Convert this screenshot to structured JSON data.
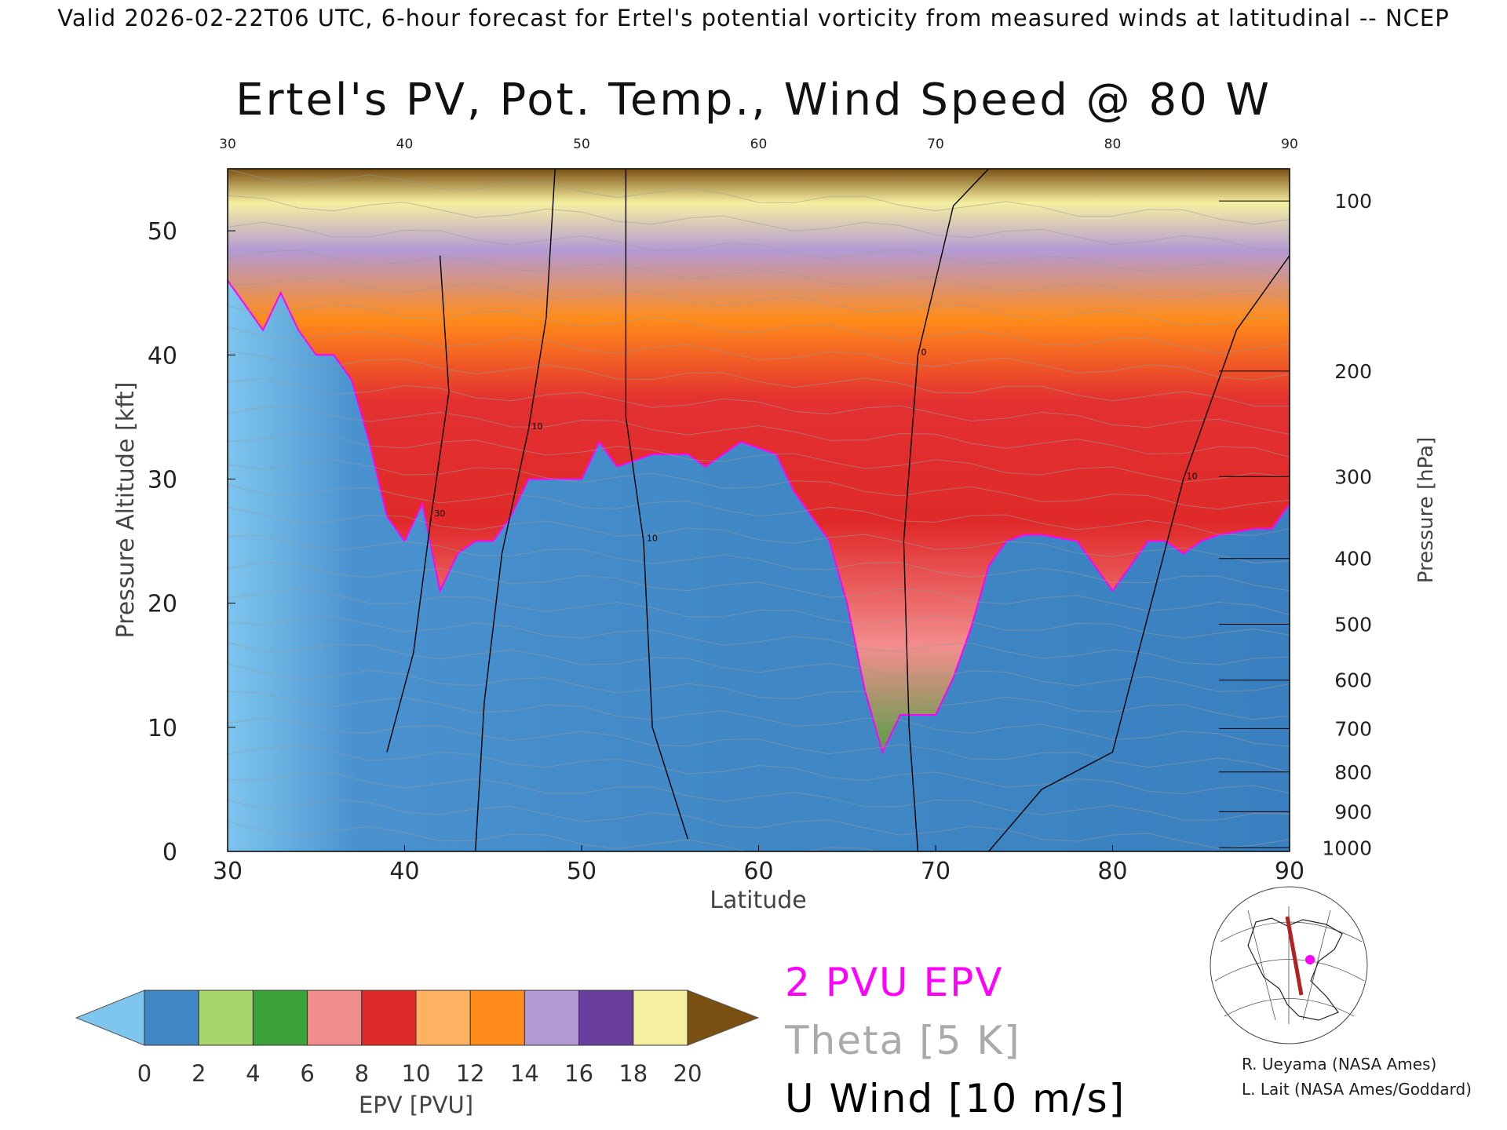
{
  "header": "Valid 2026-02-22T06 UTC, 6-hour forecast for Ertel's potential vorticity from measured winds at latitudinal -- NCEP",
  "chart_data": {
    "type": "heatmap",
    "title": "Ertel's PV, Pot. Temp., Wind Speed @ 80 W",
    "xlabel": "Latitude",
    "ylabel": "Pressure Altitude [kft]",
    "y2label": "Pressure [hPa]",
    "xlim": [
      30,
      90
    ],
    "ylim": [
      0,
      55
    ],
    "x_ticks": [
      30,
      40,
      50,
      60,
      70,
      80,
      90
    ],
    "y_ticks": [
      0,
      10,
      20,
      30,
      40,
      50
    ],
    "y2_ticks": [
      {
        "label": "100",
        "kft": 52.4
      },
      {
        "label": "200",
        "kft": 38.7
      },
      {
        "label": "300",
        "kft": 30.2
      },
      {
        "label": "400",
        "kft": 23.6
      },
      {
        "label": "500",
        "kft": 18.3
      },
      {
        "label": "600",
        "kft": 13.8
      },
      {
        "label": "700",
        "kft": 9.9
      },
      {
        "label": "800",
        "kft": 6.4
      },
      {
        "label": "900",
        "kft": 3.2
      },
      {
        "label": "1000",
        "kft": 0.3
      }
    ],
    "pv_2pvu_kft": [
      [
        30,
        46
      ],
      [
        31,
        44
      ],
      [
        32,
        42
      ],
      [
        33,
        45
      ],
      [
        34,
        42
      ],
      [
        35,
        40
      ],
      [
        36,
        40
      ],
      [
        37,
        38
      ],
      [
        38,
        33
      ],
      [
        39,
        27
      ],
      [
        40,
        25
      ],
      [
        41,
        28
      ],
      [
        42,
        21
      ],
      [
        43,
        24
      ],
      [
        44,
        25
      ],
      [
        45,
        25
      ],
      [
        46,
        27
      ],
      [
        47,
        30
      ],
      [
        48,
        30
      ],
      [
        50,
        30
      ],
      [
        51,
        33
      ],
      [
        52,
        31
      ],
      [
        54,
        32
      ],
      [
        56,
        32
      ],
      [
        57,
        31
      ],
      [
        58,
        32
      ],
      [
        59,
        33
      ],
      [
        61,
        32
      ],
      [
        62,
        29
      ],
      [
        63,
        27
      ],
      [
        64,
        25
      ],
      [
        65,
        20
      ],
      [
        66,
        13
      ],
      [
        67,
        8
      ],
      [
        68,
        11
      ],
      [
        69,
        11
      ],
      [
        70,
        11
      ],
      [
        71,
        14
      ],
      [
        72,
        18
      ],
      [
        73,
        23
      ],
      [
        74,
        25
      ],
      [
        75,
        25.5
      ],
      [
        76,
        25.5
      ],
      [
        78,
        25
      ],
      [
        79,
        23
      ],
      [
        80,
        21
      ],
      [
        81,
        23
      ],
      [
        82,
        25
      ],
      [
        83,
        25
      ],
      [
        84,
        24
      ],
      [
        85,
        25
      ],
      [
        86,
        25.5
      ],
      [
        88,
        26
      ],
      [
        89,
        26
      ],
      [
        90,
        28
      ]
    ],
    "wind_contours": [
      {
        "value": 10,
        "points": [
          [
            44,
            0
          ],
          [
            44.5,
            12
          ],
          [
            45.5,
            24
          ],
          [
            47,
            34
          ],
          [
            48,
            43
          ],
          [
            48.5,
            55
          ]
        ]
      },
      {
        "value": 10,
        "points": [
          [
            56,
            1
          ],
          [
            54,
            10
          ],
          [
            53.5,
            25
          ],
          [
            52.5,
            35
          ],
          [
            52.5,
            55
          ]
        ]
      },
      {
        "value": 0,
        "points": [
          [
            69,
            0
          ],
          [
            68.5,
            10
          ],
          [
            68.2,
            25
          ],
          [
            69,
            40
          ],
          [
            71,
            52
          ],
          [
            73,
            55
          ]
        ]
      },
      {
        "value": 30,
        "points": [
          [
            39,
            8
          ],
          [
            40.5,
            16
          ],
          [
            41.5,
            27
          ],
          [
            42.5,
            37
          ],
          [
            42,
            48
          ]
        ]
      },
      {
        "value": 10,
        "points": [
          [
            73,
            0
          ],
          [
            76,
            5
          ],
          [
            80,
            8
          ],
          [
            84,
            30
          ],
          [
            87,
            42
          ],
          [
            90,
            48
          ]
        ]
      }
    ],
    "epv_colorbar": {
      "label": "EPV [PVU]",
      "ticks": [
        0,
        2,
        4,
        6,
        8,
        10,
        12,
        14,
        16,
        18,
        20
      ],
      "colors": [
        "#3f88c5",
        "#a8d66a",
        "#3ba23a",
        "#f38d8d",
        "#e02a2a",
        "#ffb060",
        "#ff8c1a",
        "#b49ad4",
        "#6a3e9e",
        "#f5f0a0",
        "#7a4f12"
      ],
      "under_color": "#7ec6ee",
      "over_color": "#7a4f12"
    },
    "legend": [
      {
        "label": "2 PVU EPV",
        "color": "#ff00ff"
      },
      {
        "label": "Theta [5 K]",
        "color": "#aaaaaa"
      },
      {
        "label": "U Wind [10 m/s]",
        "color": "#000000"
      }
    ]
  },
  "credits": [
    "R. Ueyama (NASA Ames)",
    "L. Lait (NASA Ames/Goddard)"
  ]
}
